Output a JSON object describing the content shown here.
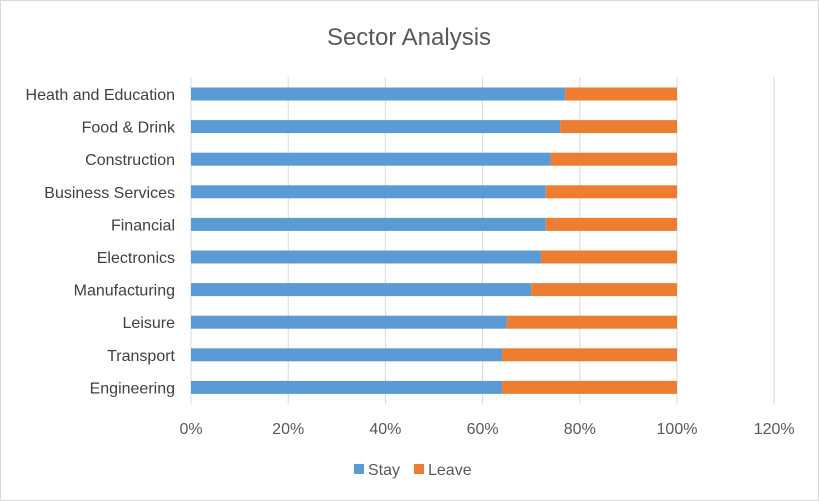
{
  "chart_data": {
    "type": "bar",
    "orientation": "horizontal",
    "stacked": true,
    "title": "Sector Analysis",
    "xlabel": "",
    "ylabel": "",
    "xlim": [
      0,
      120
    ],
    "grid": true,
    "legend_position": "bottom",
    "categories": [
      "Heath and Education",
      "Food & Drink",
      "Construction",
      "Business Services",
      "Financial",
      "Electronics",
      "Manufacturing",
      "Leisure",
      "Transport",
      "Engineering"
    ],
    "x_ticks": [
      "0%",
      "20%",
      "40%",
      "60%",
      "80%",
      "100%",
      "120%"
    ],
    "series": [
      {
        "name": "Stay",
        "color": "#5b9bd5",
        "values": [
          77,
          76,
          74,
          73,
          73,
          72,
          70,
          65,
          64,
          64
        ]
      },
      {
        "name": "Leave",
        "color": "#ed7d31",
        "values": [
          23,
          24,
          26,
          27,
          27,
          28,
          30,
          35,
          36,
          36
        ]
      }
    ]
  }
}
